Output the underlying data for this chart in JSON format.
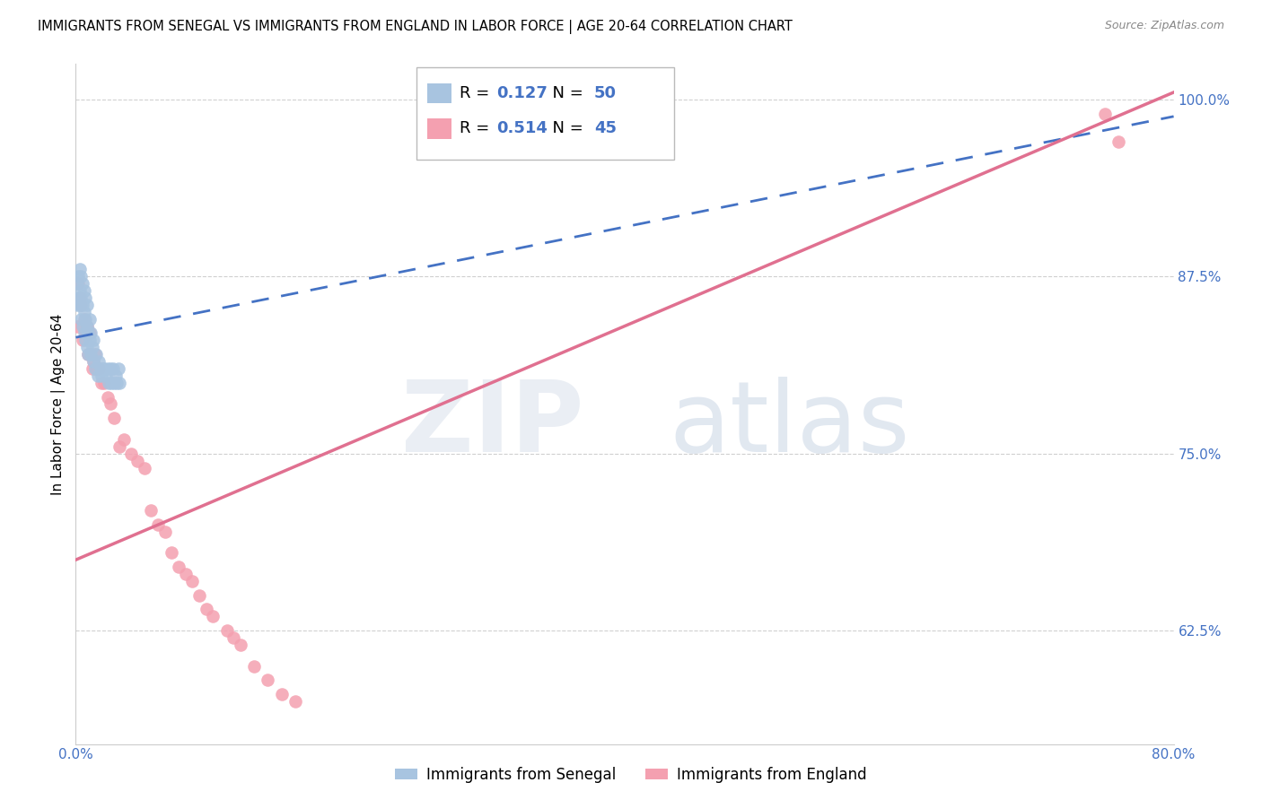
{
  "title": "IMMIGRANTS FROM SENEGAL VS IMMIGRANTS FROM ENGLAND IN LABOR FORCE | AGE 20-64 CORRELATION CHART",
  "source": "Source: ZipAtlas.com",
  "ylabel": "In Labor Force | Age 20-64",
  "xlim": [
    0.0,
    0.8
  ],
  "ylim": [
    0.545,
    1.025
  ],
  "xticks": [
    0.0,
    0.1,
    0.2,
    0.3,
    0.4,
    0.5,
    0.6,
    0.7,
    0.8
  ],
  "xticklabels": [
    "0.0%",
    "",
    "",
    "",
    "",
    "",
    "",
    "",
    "80.0%"
  ],
  "yticks": [
    0.625,
    0.75,
    0.875,
    1.0
  ],
  "yticklabels": [
    "62.5%",
    "75.0%",
    "87.5%",
    "100.0%"
  ],
  "senegal_R": 0.127,
  "senegal_N": 50,
  "england_R": 0.514,
  "england_N": 45,
  "senegal_color": "#a8c4e0",
  "england_color": "#f4a0b0",
  "senegal_line_color": "#4472c4",
  "england_line_color": "#e07090",
  "senegal_x": [
    0.001,
    0.001,
    0.002,
    0.002,
    0.003,
    0.003,
    0.003,
    0.004,
    0.004,
    0.004,
    0.005,
    0.005,
    0.005,
    0.006,
    0.006,
    0.006,
    0.007,
    0.007,
    0.007,
    0.008,
    0.008,
    0.008,
    0.009,
    0.009,
    0.01,
    0.01,
    0.011,
    0.011,
    0.012,
    0.013,
    0.013,
    0.014,
    0.015,
    0.016,
    0.017,
    0.018,
    0.019,
    0.02,
    0.021,
    0.022,
    0.023,
    0.024,
    0.025,
    0.026,
    0.027,
    0.028,
    0.029,
    0.03,
    0.031,
    0.032
  ],
  "senegal_y": [
    0.855,
    0.87,
    0.86,
    0.875,
    0.855,
    0.865,
    0.88,
    0.845,
    0.86,
    0.875,
    0.84,
    0.855,
    0.87,
    0.835,
    0.85,
    0.865,
    0.83,
    0.845,
    0.86,
    0.825,
    0.84,
    0.855,
    0.82,
    0.835,
    0.83,
    0.845,
    0.82,
    0.835,
    0.825,
    0.815,
    0.83,
    0.81,
    0.82,
    0.805,
    0.815,
    0.81,
    0.805,
    0.81,
    0.81,
    0.805,
    0.81,
    0.8,
    0.81,
    0.8,
    0.81,
    0.8,
    0.805,
    0.8,
    0.81,
    0.8
  ],
  "england_x": [
    0.001,
    0.002,
    0.003,
    0.004,
    0.005,
    0.006,
    0.007,
    0.008,
    0.009,
    0.01,
    0.011,
    0.012,
    0.013,
    0.014,
    0.015,
    0.017,
    0.019,
    0.021,
    0.023,
    0.025,
    0.028,
    0.032,
    0.035,
    0.04,
    0.045,
    0.05,
    0.055,
    0.06,
    0.065,
    0.07,
    0.075,
    0.08,
    0.085,
    0.09,
    0.095,
    0.1,
    0.11,
    0.115,
    0.12,
    0.13,
    0.14,
    0.15,
    0.16,
    0.75,
    0.76
  ],
  "england_y": [
    0.84,
    0.87,
    0.86,
    0.855,
    0.83,
    0.845,
    0.835,
    0.84,
    0.82,
    0.835,
    0.82,
    0.81,
    0.815,
    0.82,
    0.81,
    0.81,
    0.8,
    0.8,
    0.79,
    0.785,
    0.775,
    0.755,
    0.76,
    0.75,
    0.745,
    0.74,
    0.71,
    0.7,
    0.695,
    0.68,
    0.67,
    0.665,
    0.66,
    0.65,
    0.64,
    0.635,
    0.625,
    0.62,
    0.615,
    0.6,
    0.59,
    0.58,
    0.575,
    0.99,
    0.97
  ],
  "senegal_line_x0": 0.0,
  "senegal_line_y0": 0.832,
  "senegal_line_x1": 0.8,
  "senegal_line_y1": 0.988,
  "england_line_x0": 0.0,
  "england_line_y0": 0.675,
  "england_line_x1": 0.8,
  "england_line_y1": 1.005
}
